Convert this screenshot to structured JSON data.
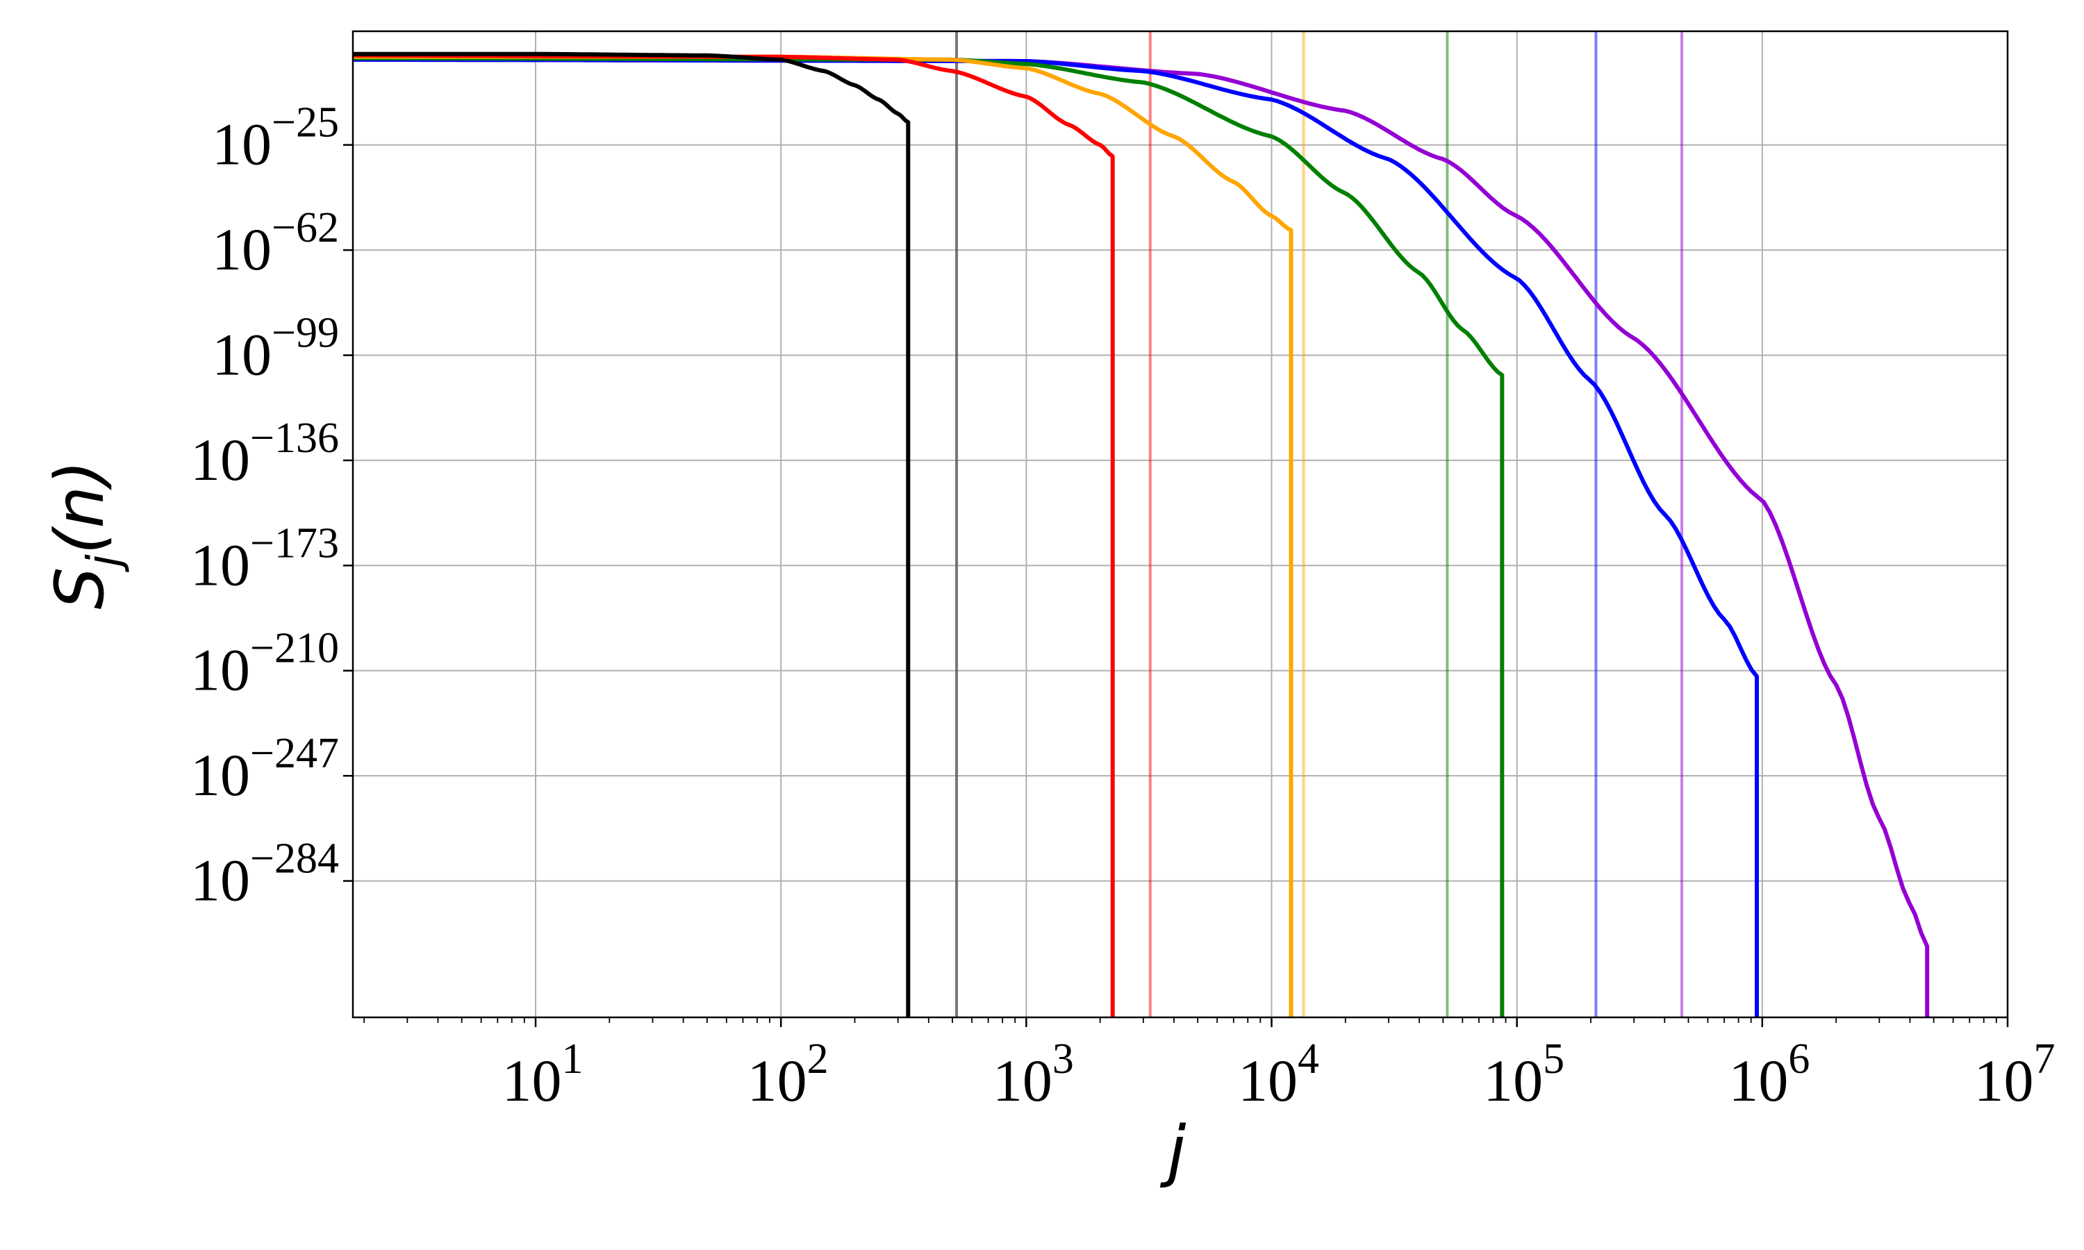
{
  "chart_data": {
    "type": "line",
    "title": "",
    "xlabel": "j",
    "ylabel": "S_j(n)",
    "x_scale": "log",
    "y_scale": "log",
    "xlim": [
      1.8,
      10000000
    ],
    "ylim_exponent": [
      -332,
      15
    ],
    "grid": true,
    "legend": "none",
    "x_ticks": [
      {
        "exp": 1,
        "base": "10",
        "sup": "1"
      },
      {
        "exp": 2,
        "base": "10",
        "sup": "2"
      },
      {
        "exp": 3,
        "base": "10",
        "sup": "3"
      },
      {
        "exp": 4,
        "base": "10",
        "sup": "4"
      },
      {
        "exp": 5,
        "base": "10",
        "sup": "5"
      },
      {
        "exp": 6,
        "base": "10",
        "sup": "6"
      },
      {
        "exp": 7,
        "base": "10",
        "sup": "7"
      }
    ],
    "y_ticks": [
      {
        "exp": -25,
        "base": "10",
        "sup": "−25"
      },
      {
        "exp": -62,
        "base": "10",
        "sup": "−62"
      },
      {
        "exp": -99,
        "base": "10",
        "sup": "−99"
      },
      {
        "exp": -136,
        "base": "10",
        "sup": "−136"
      },
      {
        "exp": -173,
        "base": "10",
        "sup": "−173"
      },
      {
        "exp": -210,
        "base": "10",
        "sup": "−210"
      },
      {
        "exp": -247,
        "base": "10",
        "sup": "−247"
      },
      {
        "exp": -284,
        "base": "10",
        "sup": "−284"
      }
    ],
    "vertical_lines": [
      {
        "x": 520,
        "color": "#555555",
        "opacity": 0.8
      },
      {
        "x": 3200,
        "color": "#ff0000",
        "opacity": 0.5
      },
      {
        "x": 13500,
        "color": "#ffa500",
        "opacity": 0.5
      },
      {
        "x": 52000,
        "color": "#008000",
        "opacity": 0.5
      },
      {
        "x": 210000,
        "color": "#0000ff",
        "opacity": 0.5
      },
      {
        "x": 470000,
        "color": "#9400d3",
        "opacity": 0.5
      }
    ],
    "series": [
      {
        "color": "#000000",
        "start_exp": 7,
        "x_end": 330,
        "end_exp": -17,
        "points": [
          [
            1.8,
            7
          ],
          [
            10,
            7
          ],
          [
            50,
            6.5
          ],
          [
            100,
            5
          ],
          [
            150,
            1
          ],
          [
            200,
            -4
          ],
          [
            250,
            -9
          ],
          [
            300,
            -14
          ],
          [
            330,
            -17
          ]
        ]
      },
      {
        "color": "#ff0000",
        "start_exp": 6.5,
        "x_end": 2250,
        "end_exp": -29,
        "points": [
          [
            1.8,
            6.5
          ],
          [
            100,
            6
          ],
          [
            300,
            5
          ],
          [
            500,
            1
          ],
          [
            1000,
            -8
          ],
          [
            1500,
            -18
          ],
          [
            2000,
            -25
          ],
          [
            2250,
            -29
          ]
        ]
      },
      {
        "color": "#ffa500",
        "start_exp": 6,
        "x_end": 12000,
        "end_exp": -55,
        "points": [
          [
            1.8,
            6
          ],
          [
            100,
            6
          ],
          [
            500,
            5
          ],
          [
            1000,
            2
          ],
          [
            2000,
            -7
          ],
          [
            4000,
            -22
          ],
          [
            7000,
            -38
          ],
          [
            10000,
            -50
          ],
          [
            12000,
            -55
          ]
        ]
      },
      {
        "color": "#008000",
        "start_exp": 5.5,
        "x_end": 87000,
        "end_exp": -106,
        "points": [
          [
            1.8,
            5.5
          ],
          [
            500,
            5
          ],
          [
            1000,
            3.5
          ],
          [
            3000,
            -3
          ],
          [
            10000,
            -22
          ],
          [
            20000,
            -42
          ],
          [
            40000,
            -70
          ],
          [
            60000,
            -90
          ],
          [
            87000,
            -106
          ]
        ]
      },
      {
        "color": "#0000ff",
        "start_exp": 5,
        "x_end": 950000,
        "end_exp": -212,
        "points": [
          [
            1.8,
            5
          ],
          [
            1000,
            4.5
          ],
          [
            3000,
            1
          ],
          [
            10000,
            -9
          ],
          [
            30000,
            -30
          ],
          [
            100000,
            -72
          ],
          [
            200000,
            -108
          ],
          [
            400000,
            -155
          ],
          [
            700000,
            -192
          ],
          [
            950000,
            -212
          ]
        ]
      },
      {
        "color": "#9400d3",
        "start_exp": 5,
        "x_end": 4700000,
        "end_exp": -307,
        "points": [
          [
            1.8,
            5
          ],
          [
            1000,
            4.5
          ],
          [
            5000,
            0
          ],
          [
            20000,
            -13
          ],
          [
            50000,
            -30
          ],
          [
            100000,
            -50
          ],
          [
            300000,
            -93
          ],
          [
            1000000,
            -150
          ],
          [
            2000000,
            -215
          ],
          [
            3000000,
            -262
          ],
          [
            4000000,
            -292
          ],
          [
            4700000,
            -307
          ]
        ]
      }
    ]
  }
}
